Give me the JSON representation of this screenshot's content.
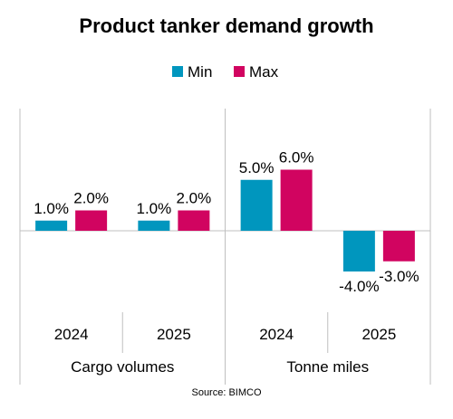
{
  "chart_data": {
    "type": "bar",
    "title": "Product tanker demand growth",
    "source": "Source: BIMCO",
    "groups": [
      {
        "label": "Cargo volumes",
        "categories": [
          "2024",
          "2025"
        ]
      },
      {
        "label": "Tonne miles",
        "categories": [
          "2024",
          "2025"
        ]
      }
    ],
    "categories": [
      "2024",
      "2025",
      "2024",
      "2025"
    ],
    "series": [
      {
        "name": "Min",
        "color": "#0096BE",
        "values": [
          1.0,
          1.0,
          5.0,
          -4.0
        ],
        "labels": [
          "1.0%",
          "1.0%",
          "5.0%",
          "-4.0%"
        ]
      },
      {
        "name": "Max",
        "color": "#D10460",
        "values": [
          2.0,
          2.0,
          6.0,
          -3.0
        ],
        "labels": [
          "2.0%",
          "2.0%",
          "6.0%",
          "-3.0%"
        ]
      }
    ],
    "ylim": [
      -8,
      12
    ],
    "legend_position": "top-center",
    "grid": false,
    "xlabel": "",
    "ylabel": ""
  }
}
